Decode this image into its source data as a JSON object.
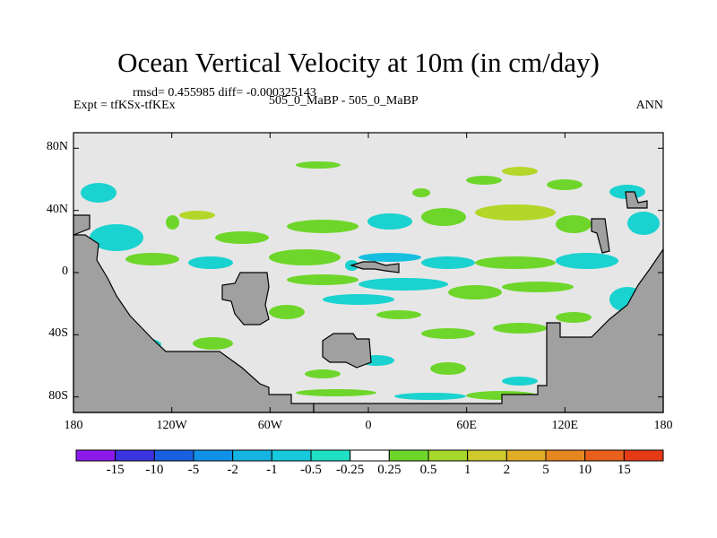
{
  "title": "Ocean Vertical Velocity at 10m (in cm/day)",
  "stats_line": "rmsd= 0.455985 diff= -0.000325143",
  "experiment": "Expt = tfKSx-tfKEx",
  "case_label": "505_0_MaBP - 505_0_MaBP",
  "period": "ANN",
  "colors": {
    "land": "#a0a0a0",
    "neutral": "#e6e6e6",
    "green": "#6ed62a",
    "yellow_green": "#b4d629",
    "cyan": "#1ad2cf",
    "light_cyan": "#16bfe0"
  },
  "chart_data": {
    "type": "heatmap",
    "projection": "cylindrical equidistant, global",
    "field": "difference in ocean vertical velocity at 10m",
    "units": "cm/day",
    "xlim": [
      -180,
      180
    ],
    "ylim": [
      -90,
      90
    ],
    "x_ticks": [
      {
        "value": -180,
        "label": "180"
      },
      {
        "value": -120,
        "label": "120W"
      },
      {
        "value": -60,
        "label": "60W"
      },
      {
        "value": 0,
        "label": "0"
      },
      {
        "value": 60,
        "label": "60E"
      },
      {
        "value": 120,
        "label": "120E"
      },
      {
        "value": 180,
        "label": "180"
      }
    ],
    "y_ticks": [
      {
        "value": 80,
        "label": "80N"
      },
      {
        "value": 40,
        "label": "40N"
      },
      {
        "value": 0,
        "label": "0"
      },
      {
        "value": -40,
        "label": "40S"
      },
      {
        "value": -80,
        "label": "80S"
      }
    ],
    "contour_levels": [
      "-15",
      "-10",
      "-5",
      "-2",
      "-1",
      "-0.5",
      "-0.25",
      "0.25",
      "0.5",
      "1",
      "2",
      "5",
      "10",
      "15"
    ],
    "colorbar_colors": [
      "#8c1aec",
      "#3a34e0",
      "#1860e0",
      "#1190e8",
      "#15b4e2",
      "#17c9dc",
      "#1fe0c4",
      "#ffffff",
      "#6ed62a",
      "#a5d82a",
      "#cec92d",
      "#e2ad26",
      "#e68620",
      "#e8601c",
      "#e53a16"
    ]
  }
}
